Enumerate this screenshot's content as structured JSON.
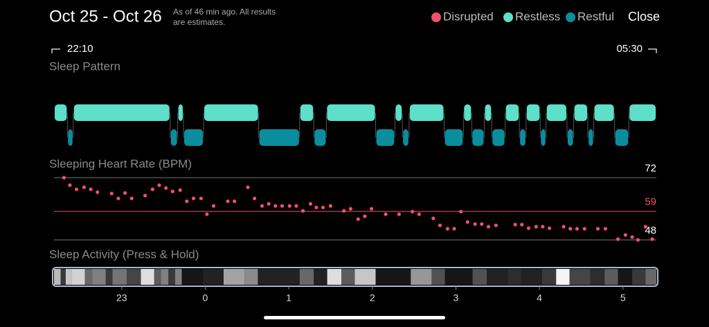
{
  "header": {
    "title": "Oct 25 - Oct 26",
    "note": [
      "As of 46 min ago. All results",
      "are estimates."
    ],
    "close": "Close"
  },
  "chart_data": [
    {
      "type": "timeline",
      "title": "Sleep Pattern",
      "start_label": "22:10",
      "end_label": "05:30",
      "xlim": [
        -1.81,
        5.4
      ],
      "series": [
        {
          "name": "Disrupted",
          "color": "#f0506a",
          "segments": []
        },
        {
          "name": "Restless",
          "color": "#5ddfc9",
          "segments": [
            [
              -1.81,
              -1.65
            ],
            [
              -1.58,
              -0.42
            ],
            [
              -0.33,
              -0.26
            ],
            [
              -0.02,
              0.64
            ],
            [
              1.13,
              1.3
            ],
            [
              1.45,
              2.04
            ],
            [
              2.27,
              2.36
            ],
            [
              2.44,
              2.86
            ],
            [
              3.09,
              3.19
            ],
            [
              3.34,
              3.43
            ],
            [
              3.59,
              3.76
            ],
            [
              3.84,
              4.01
            ],
            [
              4.08,
              4.33
            ],
            [
              4.41,
              4.58
            ],
            [
              4.65,
              4.9
            ],
            [
              5.07,
              5.4
            ]
          ]
        },
        {
          "name": "Restful",
          "color": "#0a8e9e",
          "segments": [
            [
              -1.65,
              -1.58
            ],
            [
              -0.42,
              -0.33
            ],
            [
              -0.26,
              -0.02
            ],
            [
              0.64,
              1.13
            ],
            [
              1.3,
              1.45
            ],
            [
              2.04,
              2.27
            ],
            [
              2.36,
              2.44
            ],
            [
              2.86,
              3.09
            ],
            [
              3.19,
              3.34
            ],
            [
              3.43,
              3.59
            ],
            [
              3.76,
              3.84
            ],
            [
              4.01,
              4.08
            ],
            [
              4.33,
              4.41
            ],
            [
              4.58,
              4.65
            ],
            [
              4.9,
              5.07
            ]
          ]
        }
      ]
    },
    {
      "type": "scatter",
      "title": "Sleeping Heart Rate (BPM)",
      "color": "#f0506a",
      "xlim": [
        -1.81,
        5.4
      ],
      "ylim": [
        48,
        72
      ],
      "yticks": [
        48,
        72
      ],
      "average": 59,
      "x": [
        -1.69,
        -1.62,
        -1.54,
        -1.45,
        -1.37,
        -1.29,
        -1.12,
        -1.04,
        -0.96,
        -0.88,
        -0.72,
        -0.63,
        -0.55,
        -0.47,
        -0.39,
        -0.3,
        -0.22,
        -0.14,
        -0.05,
        0.02,
        0.1,
        0.27,
        0.35,
        0.51,
        0.59,
        0.68,
        0.76,
        0.84,
        0.92,
        1.01,
        1.09,
        1.17,
        1.26,
        1.33,
        1.41,
        1.5,
        1.66,
        1.74,
        1.83,
        1.91,
        1.99,
        2.16,
        2.32,
        2.48,
        2.56,
        2.73,
        2.81,
        2.9,
        2.98,
        3.06,
        3.14,
        3.23,
        3.31,
        3.39,
        3.48,
        3.71,
        3.79,
        3.87,
        3.96,
        4.04,
        4.12,
        4.29,
        4.37,
        4.45,
        4.54,
        4.7,
        4.79,
        4.94,
        5.03,
        5.11,
        5.18,
        5.27,
        5.35
      ],
      "values": [
        72.0,
        69.1,
        67.5,
        68.3,
        67.5,
        66.4,
        65.9,
        64.0,
        66.1,
        64.0,
        65.1,
        67.5,
        69.1,
        68.0,
        66.7,
        67.2,
        62.9,
        64.0,
        64.0,
        57.9,
        61.1,
        62.9,
        62.9,
        68.3,
        64.0,
        61.1,
        61.9,
        61.1,
        61.1,
        61.1,
        61.1,
        59.2,
        61.9,
        60.5,
        60.5,
        61.1,
        59.2,
        60.0,
        56.0,
        57.1,
        60.0,
        57.9,
        57.9,
        58.9,
        57.9,
        56.3,
        53.6,
        52.3,
        52.3,
        58.9,
        54.9,
        54.1,
        54.1,
        53.1,
        53.6,
        53.9,
        53.9,
        52.5,
        53.1,
        53.1,
        52.5,
        53.1,
        52.3,
        52.3,
        52.3,
        52.3,
        52.3,
        48.3,
        49.9,
        49.1,
        48.0,
        53.1,
        48.3
      ]
    },
    {
      "type": "heatstrip",
      "title": "Sleep Activity (Press & Hold)",
      "xlim": [
        -1.81,
        5.4
      ],
      "xticks": [
        {
          "value": -1,
          "label": "23"
        },
        0,
        1,
        2,
        3,
        4,
        5
      ],
      "bins": [
        -1.81,
        -1.73,
        -1.67,
        -1.6,
        -1.44,
        -1.35,
        -1.19,
        -1.11,
        -0.94,
        -0.77,
        -0.61,
        -0.53,
        -0.44,
        -0.36,
        -0.28,
        -0.03,
        0.22,
        0.47,
        0.63,
        1.13,
        1.3,
        1.46,
        1.63,
        1.79,
        2.04,
        2.46,
        2.71,
        2.87,
        3.2,
        3.37,
        3.62,
        3.78,
        4.03,
        4.2,
        4.36,
        4.61,
        4.78,
        4.94,
        5.11,
        5.27,
        5.4
      ],
      "values": [
        0.75,
        0.2,
        0.8,
        0.85,
        0.4,
        0.5,
        0.2,
        0.45,
        0.25,
        0.9,
        0.35,
        0.5,
        0.2,
        0.5,
        0.05,
        0.1,
        0.65,
        0.55,
        0.1,
        0.4,
        0.1,
        0.9,
        0.35,
        0.8,
        0.05,
        0.6,
        0.3,
        0.05,
        0.3,
        0.1,
        0.15,
        0.1,
        0.2,
        1.0,
        0.25,
        0.15,
        0.35,
        0.05,
        0.2,
        0.4
      ]
    }
  ]
}
